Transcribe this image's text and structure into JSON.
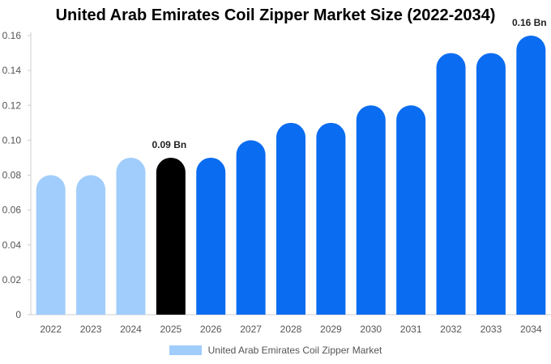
{
  "chart_data": {
    "type": "bar",
    "title": "United Arab Emirates Coil Zipper Market Size (2022-2034)",
    "categories": [
      "2022",
      "2023",
      "2024",
      "2025",
      "2026",
      "2027",
      "2028",
      "2029",
      "2030",
      "2031",
      "2032",
      "2033",
      "2034"
    ],
    "series": [
      {
        "name": "United Arab Emirates Coil Zipper Market",
        "values": [
          0.08,
          0.08,
          0.09,
          0.09,
          0.09,
          0.1,
          0.11,
          0.11,
          0.12,
          0.12,
          0.15,
          0.15,
          0.16
        ]
      }
    ],
    "bar_colors": [
      "#a0cdfb",
      "#a0cdfb",
      "#a0cdfb",
      "#000000",
      "#0a6cf0",
      "#0a6cf0",
      "#0a6cf0",
      "#0a6cf0",
      "#0a6cf0",
      "#0a6cf0",
      "#0a6cf0",
      "#0a6cf0",
      "#0a6cf0"
    ],
    "y_ticks": [
      "0",
      "0.02",
      "0.04",
      "0.06",
      "0.08",
      "0.10",
      "0.12",
      "0.14",
      "0.16"
    ],
    "ylim": [
      0,
      0.16
    ],
    "data_labels": [
      {
        "category": "2025",
        "text": "0.09 Bn"
      },
      {
        "category": "2034",
        "text": "0.16 Bn"
      }
    ],
    "legend_color": "#a0cdfb",
    "grid": false,
    "legend_position": "bottom"
  }
}
